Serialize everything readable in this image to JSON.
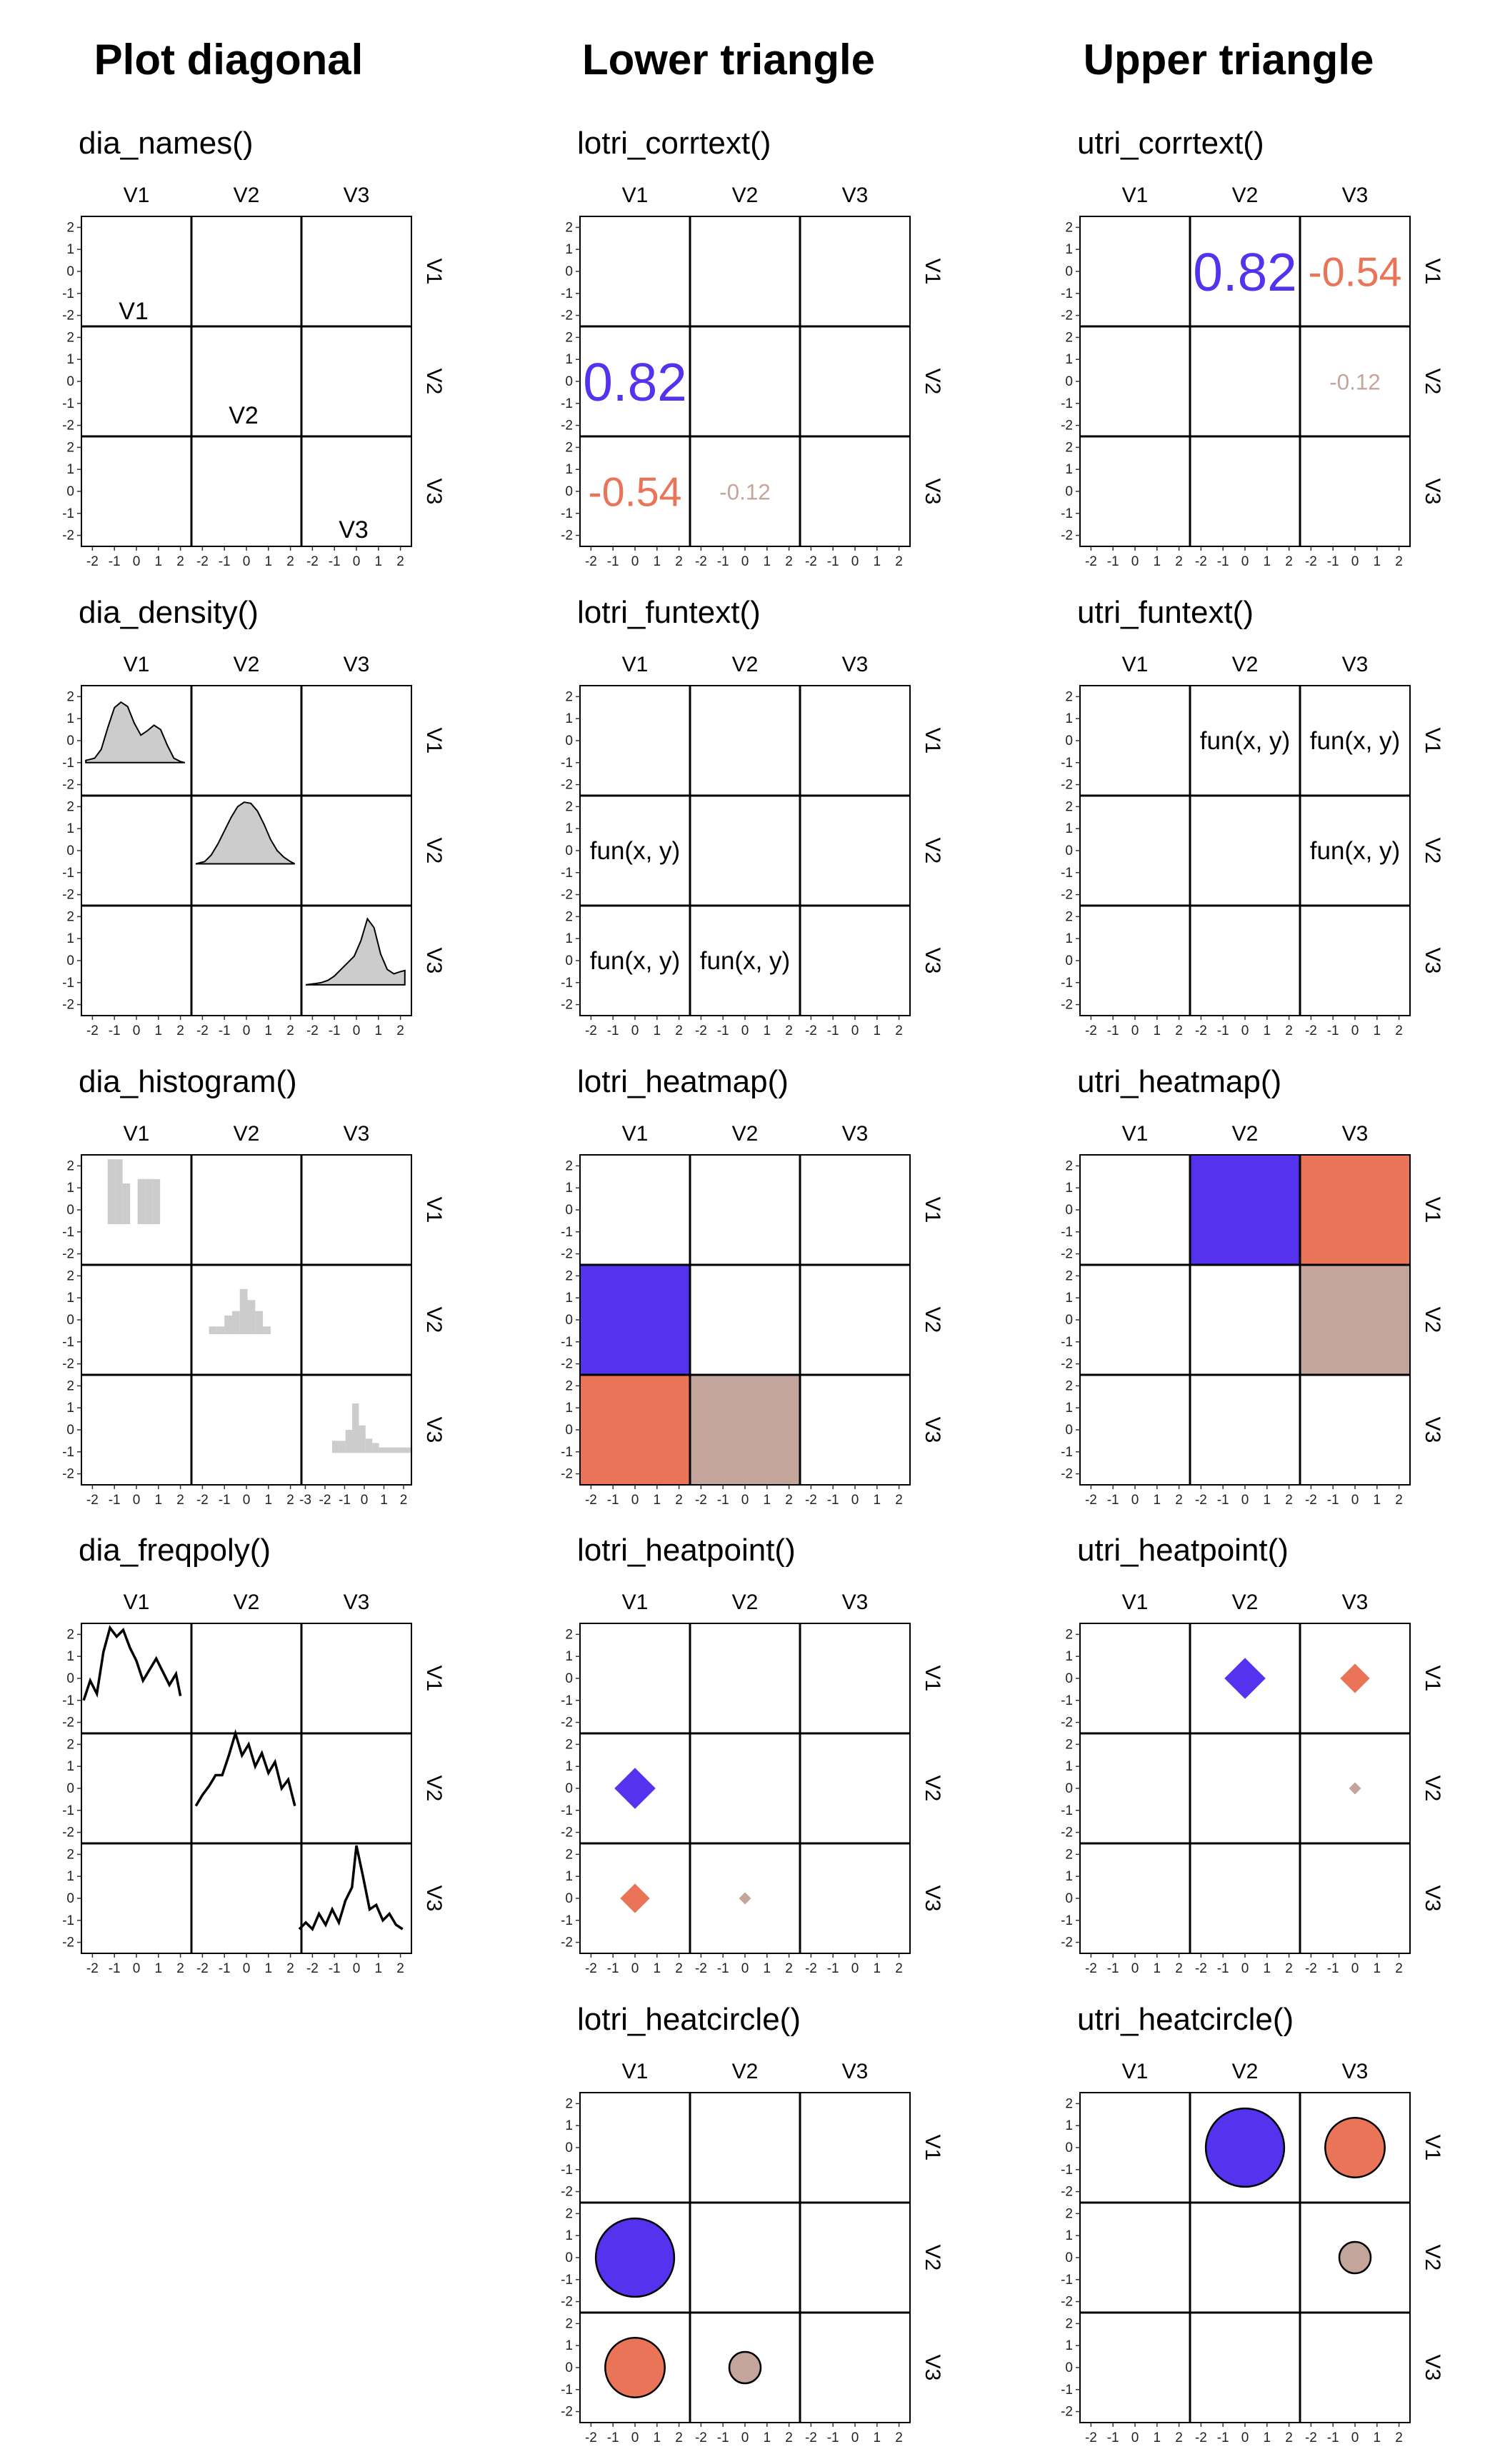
{
  "columns": [
    {
      "heading": "Plot diagonal",
      "panels": [
        {
          "id": "dia_names",
          "title": "dia_names()"
        },
        {
          "id": "dia_density",
          "title": "dia_density()"
        },
        {
          "id": "dia_histogram",
          "title": "dia_histogram()"
        },
        {
          "id": "dia_freqpoly",
          "title": "dia_freqpoly()"
        }
      ]
    },
    {
      "heading": "Lower triangle",
      "panels": [
        {
          "id": "lotri_corrtext",
          "title": "lotri_corrtext()"
        },
        {
          "id": "lotri_funtext",
          "title": "lotri_funtext()"
        },
        {
          "id": "lotri_heatmap",
          "title": "lotri_heatmap()"
        },
        {
          "id": "lotri_heatpoint",
          "title": "lotri_heatpoint()"
        },
        {
          "id": "lotri_heatcircle",
          "title": "lotri_heatcircle()"
        }
      ]
    },
    {
      "heading": "Upper triangle",
      "panels": [
        {
          "id": "utri_corrtext",
          "title": "utri_corrtext()"
        },
        {
          "id": "utri_funtext",
          "title": "utri_funtext()"
        },
        {
          "id": "utri_heatmap",
          "title": "utri_heatmap()"
        },
        {
          "id": "utri_heatpoint",
          "title": "utri_heatpoint()"
        },
        {
          "id": "utri_heatcircle",
          "title": "utri_heatcircle()"
        }
      ]
    }
  ],
  "chart_data": {
    "type": "scatterplot-matrix-gallery",
    "variables": [
      "V1",
      "V2",
      "V3"
    ],
    "axis_range": [
      -2.5,
      2.5
    ],
    "ticks": [
      -2,
      -1,
      0,
      1,
      2
    ],
    "tick_labels": [
      "-2",
      "-1",
      "0",
      "1",
      "2"
    ],
    "v3_x_ticks": [
      -3,
      -2,
      -1,
      0,
      1,
      2
    ],
    "v3_x_tick_labels": [
      "-3",
      "-2",
      "-1",
      "0",
      "1",
      "2"
    ],
    "colors": {
      "positive": "#5533ee",
      "negative": "#ea7458",
      "weak": "#c4a59b",
      "neutral_fill": "#cccccc",
      "line": "#000000"
    },
    "correlations": [
      {
        "pair": [
          "V2",
          "V1"
        ],
        "value": 0.82,
        "label": "0.82"
      },
      {
        "pair": [
          "V3",
          "V1"
        ],
        "value": -0.54,
        "label": "-0.54"
      },
      {
        "pair": [
          "V3",
          "V2"
        ],
        "value": -0.12,
        "label": "-0.12"
      }
    ],
    "funtext_label": "fun(x, y)",
    "density": {
      "x": [
        -2.3,
        -1.9,
        -1.6,
        -1.3,
        -1.0,
        -0.7,
        -0.4,
        -0.1,
        0.2,
        0.5,
        0.8,
        1.1,
        1.4,
        1.7,
        2.0,
        2.2
      ],
      "V1": [
        -0.9,
        -0.8,
        -0.4,
        0.6,
        1.5,
        1.75,
        1.55,
        0.8,
        0.25,
        0.45,
        0.7,
        0.5,
        -0.2,
        -0.8,
        -0.95,
        -1.0
      ],
      "V2": [
        -0.6,
        -0.5,
        -0.2,
        0.3,
        0.9,
        1.5,
        2.0,
        2.2,
        2.15,
        1.8,
        1.2,
        0.5,
        0.0,
        -0.3,
        -0.5,
        -0.6
      ],
      "V3": [
        -1.1,
        -1.05,
        -1.0,
        -0.9,
        -0.7,
        -0.4,
        -0.1,
        0.2,
        0.9,
        1.9,
        1.5,
        0.3,
        -0.4,
        -0.6,
        -0.5,
        -0.45
      ]
    },
    "histogram": {
      "V1": {
        "x_range": [
          -1.65,
          2.1
        ],
        "counts": [
          -0.6,
          2.3,
          2.3,
          1.2,
          -0.6,
          1.4,
          1.4,
          1.4,
          -0.6,
          -0.6,
          -0.6
        ]
      },
      "V2": {
        "x_range": [
          -2.05,
          1.8
        ],
        "counts": [
          -0.6,
          -0.3,
          -0.3,
          0.2,
          0.4,
          1.4,
          0.9,
          0.4,
          -0.3,
          -0.6,
          -0.6
        ]
      },
      "V3": {
        "x_range": [
          -3.0,
          2.45
        ],
        "counts": [
          -1.0,
          -1.0,
          -1.0,
          -1.0,
          -0.5,
          -0.5,
          0.0,
          1.2,
          0.2,
          -0.4,
          -0.6,
          -0.8,
          -0.8,
          -0.8,
          -0.8,
          -0.8
        ]
      }
    },
    "freqpoly": {
      "V1": {
        "x": [
          -2.4,
          -2.1,
          -1.8,
          -1.5,
          -1.2,
          -0.9,
          -0.6,
          -0.3,
          0.0,
          0.3,
          0.6,
          0.9,
          1.2,
          1.5,
          1.8,
          2.0
        ],
        "y": [
          -1.0,
          -0.1,
          -0.7,
          1.2,
          2.3,
          1.9,
          2.2,
          1.4,
          0.8,
          -0.1,
          0.4,
          0.9,
          0.3,
          -0.3,
          0.2,
          -0.8
        ]
      },
      "V2": {
        "x": [
          -2.3,
          -2.0,
          -1.7,
          -1.4,
          -1.1,
          -0.8,
          -0.5,
          -0.2,
          0.1,
          0.4,
          0.7,
          1.0,
          1.3,
          1.6,
          1.9,
          2.2
        ],
        "y": [
          -0.8,
          -0.3,
          0.1,
          0.6,
          0.6,
          1.5,
          2.5,
          1.5,
          2.0,
          1.0,
          1.6,
          0.7,
          1.2,
          0.0,
          0.4,
          -0.8
        ]
      },
      "V3": {
        "x": [
          -2.6,
          -2.3,
          -2.0,
          -1.7,
          -1.4,
          -1.1,
          -0.8,
          -0.5,
          -0.2,
          0.0,
          0.3,
          0.6,
          0.9,
          1.2,
          1.5,
          1.8,
          2.1
        ],
        "y": [
          -1.4,
          -1.1,
          -1.4,
          -0.7,
          -1.2,
          -0.5,
          -1.1,
          -0.1,
          0.5,
          2.4,
          1.0,
          -0.5,
          -0.3,
          -1.0,
          -0.7,
          -1.2,
          -1.4
        ]
      }
    }
  }
}
